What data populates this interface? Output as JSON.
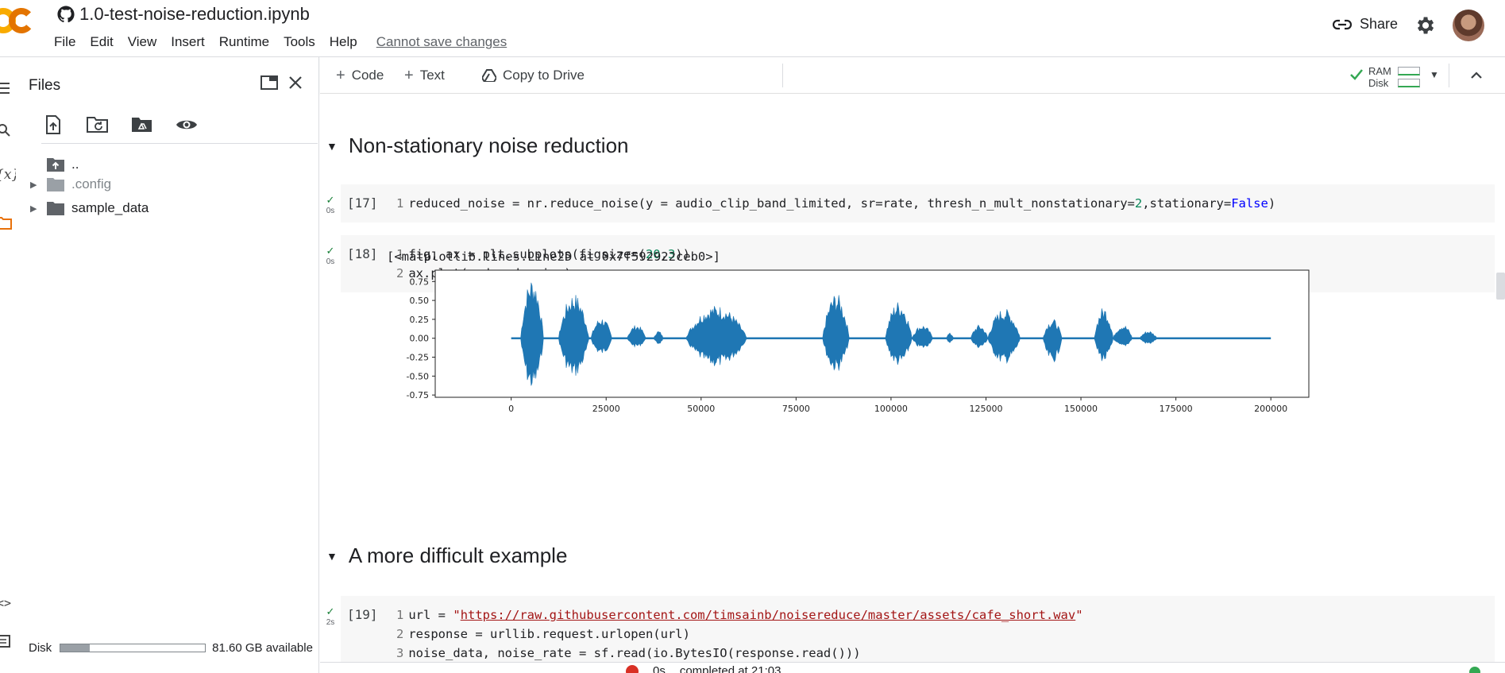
{
  "header": {
    "title": "1.0-test-noise-reduction.ipynb",
    "menu": [
      "File",
      "Edit",
      "View",
      "Insert",
      "Runtime",
      "Tools",
      "Help"
    ],
    "save_warning": "Cannot save changes",
    "share_label": "Share"
  },
  "files_panel": {
    "title": "Files",
    "tree": [
      {
        "label": "..",
        "expandable": false
      },
      {
        "label": ".config",
        "expandable": true
      },
      {
        "label": "sample_data",
        "expandable": true
      }
    ],
    "disk_label": "Disk",
    "disk_available": "81.60 GB available",
    "disk_used_fraction": 0.2
  },
  "toolbar": {
    "code_label": "Code",
    "text_label": "Text",
    "copy_label": "Copy to Drive",
    "ram_label": "RAM",
    "disk_label": "Disk"
  },
  "notebook": {
    "section1": "Non-stationary noise reduction",
    "cell17": {
      "count": "[17]",
      "time": "0s",
      "lines": [
        {
          "n": "1",
          "t": "reduced_noise = nr.reduce_noise(y = audio_clip_band_limited, sr=rate, thresh_n_mult_nonstationary=2,stationary=False)"
        }
      ]
    },
    "cell18": {
      "count": "[18]",
      "time": "0s",
      "lines": [
        {
          "n": "1",
          "t": "fig, ax = plt.subplots(figsize=(20,3))"
        },
        {
          "n": "2",
          "t": "ax.plot(reduced_noise)"
        }
      ],
      "output": "[<matplotlib.lines.Line2D at 0x7f592922ceb0>]"
    },
    "section2": "A more difficult example",
    "cell19": {
      "count": "[19]",
      "time": "2s",
      "lines": [
        {
          "n": "1",
          "t": "url = \"https://raw.githubusercontent.com/timsainb/noisereduce/master/assets/cafe_short.wav\""
        },
        {
          "n": "2",
          "t": "response = urllib.request.urlopen(url)"
        },
        {
          "n": "3",
          "t": "noise_data, noise_rate = sf.read(io.BytesIO(response.read()))"
        }
      ]
    }
  },
  "status": {
    "time": "0s",
    "text": "completed at 21:03"
  },
  "chart_data": {
    "type": "line",
    "title": "",
    "xlabel": "",
    "ylabel": "",
    "xlim": [
      -20000,
      210000
    ],
    "ylim": [
      -0.78,
      0.9
    ],
    "xticks": [
      0,
      25000,
      50000,
      75000,
      100000,
      125000,
      150000,
      175000,
      200000
    ],
    "yticks": [
      -0.75,
      -0.5,
      -0.25,
      0.0,
      0.25,
      0.5,
      0.75
    ],
    "grid": false,
    "series_color": "#1f77b4",
    "series": [
      {
        "x_start": 0,
        "x_end": 200000,
        "bursts": [
          {
            "start": 2500,
            "end": 8500,
            "pos": 0.82,
            "neg": -0.7
          },
          {
            "start": 12500,
            "end": 20500,
            "pos": 0.6,
            "neg": -0.52
          },
          {
            "start": 21000,
            "end": 26500,
            "pos": 0.28,
            "neg": -0.22
          },
          {
            "start": 30500,
            "end": 35500,
            "pos": 0.18,
            "neg": -0.12
          },
          {
            "start": 37500,
            "end": 40000,
            "pos": 0.1,
            "neg": -0.08
          },
          {
            "start": 46000,
            "end": 62000,
            "pos": 0.44,
            "neg": -0.38
          },
          {
            "start": 82000,
            "end": 89000,
            "pos": 0.6,
            "neg": -0.45
          },
          {
            "start": 98500,
            "end": 105500,
            "pos": 0.5,
            "neg": -0.37
          },
          {
            "start": 105500,
            "end": 111000,
            "pos": 0.18,
            "neg": -0.14
          },
          {
            "start": 114500,
            "end": 116500,
            "pos": 0.07,
            "neg": -0.06
          },
          {
            "start": 121000,
            "end": 125500,
            "pos": 0.18,
            "neg": -0.13
          },
          {
            "start": 125500,
            "end": 134000,
            "pos": 0.4,
            "neg": -0.34
          },
          {
            "start": 140000,
            "end": 145000,
            "pos": 0.26,
            "neg": -0.33
          },
          {
            "start": 153500,
            "end": 158500,
            "pos": 0.42,
            "neg": -0.32
          },
          {
            "start": 158500,
            "end": 163500,
            "pos": 0.19,
            "neg": -0.12
          },
          {
            "start": 165500,
            "end": 170000,
            "pos": 0.1,
            "neg": -0.08
          }
        ]
      }
    ]
  }
}
